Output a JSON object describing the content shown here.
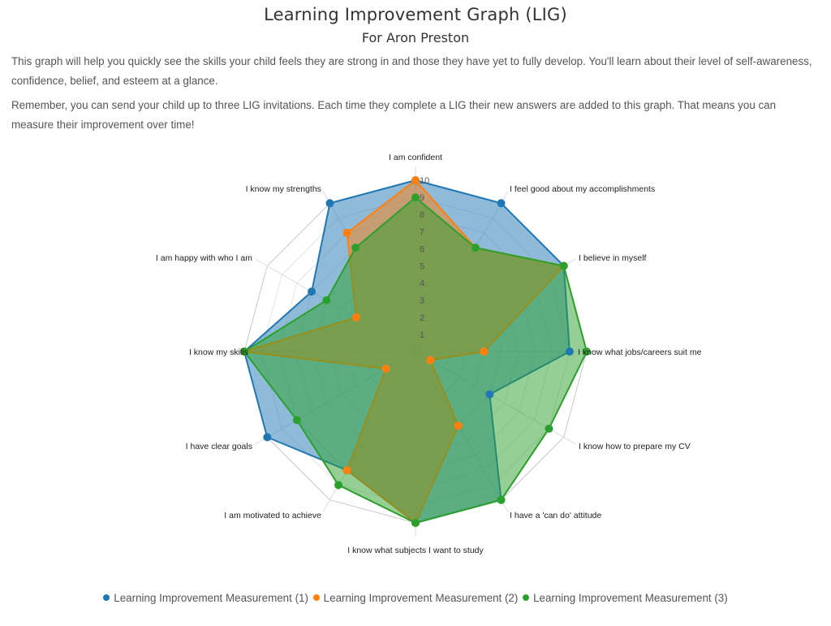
{
  "header": {
    "title": "Learning Improvement Graph (LIG)",
    "subtitle": "For Aron Preston"
  },
  "intro": {
    "paragraph_1": "This graph will help you quickly see the skills your child feels they are strong in and those they have yet to fully develop. You'll learn about their level of self-awareness, confidence, belief, and esteem at a glance.",
    "paragraph_2": "Remember, you can send your child up to three LIG invitations. Each time they complete a LIG their new answers are added to this graph. That means you can measure their improvement over time!"
  },
  "colors": {
    "series_1": "#1f77b4",
    "series_2": "#ff7f0e",
    "series_3": "#2ca02c",
    "grid": "#cccccc"
  },
  "chart_data": {
    "type": "radar",
    "title": "Learning Improvement Graph (LIG)",
    "subtitle": "For Aron Preston",
    "categories": [
      "I am confident",
      "I feel good about my accomplishments",
      "I believe in myself",
      "I know what jobs/careers suit me",
      "I know how to prepare my CV",
      "I have a 'can do' attitude",
      "I know what subjects I want to study",
      "I am motivated to achieve",
      "I have clear goals",
      "I know my skills",
      "I am happy with who I am",
      "I know my strengths"
    ],
    "series": [
      {
        "name": "Learning Improvement Measurement (1)",
        "color": "#1f77b4",
        "values": [
          10,
          10,
          10,
          9,
          5,
          10,
          10,
          8,
          10,
          10,
          7,
          10
        ]
      },
      {
        "name": "Learning Improvement Measurement (2)",
        "color": "#ff7f0e",
        "values": [
          10,
          7,
          10,
          4,
          1,
          5,
          10,
          8,
          2,
          10,
          4,
          8
        ]
      },
      {
        "name": "Learning Improvement Measurement (3)",
        "color": "#2ca02c",
        "values": [
          9,
          7,
          10,
          10,
          9,
          10,
          10,
          9,
          8,
          10,
          6,
          7
        ]
      }
    ],
    "radial_ticks": [
      "1",
      "2",
      "3",
      "4",
      "5",
      "6",
      "7",
      "8",
      "9",
      "10"
    ],
    "rlim": [
      0,
      10
    ],
    "grid": true,
    "legend_position": "bottom"
  },
  "legend": [
    {
      "label": "Learning Improvement Measurement (1)",
      "color": "#1f77b4"
    },
    {
      "label": "Learning Improvement Measurement (2)",
      "color": "#ff7f0e"
    },
    {
      "label": "Learning Improvement Measurement (3)",
      "color": "#2ca02c"
    }
  ]
}
